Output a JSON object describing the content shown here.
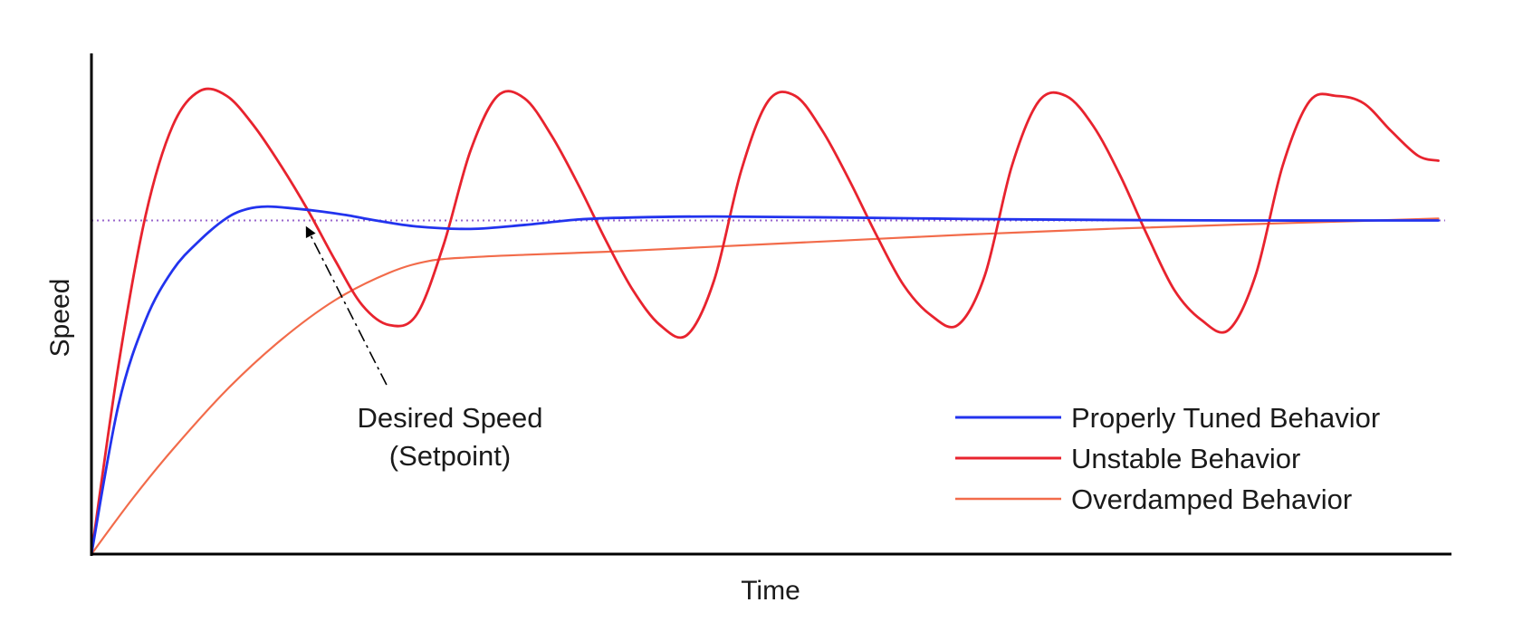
{
  "chart_data": {
    "type": "line",
    "title": "",
    "xlabel": "Time",
    "ylabel": "Speed",
    "xlim": [
      0,
      100
    ],
    "ylim": [
      0,
      100
    ],
    "grid": false,
    "tick_labels": false,
    "legend_position": "bottom-right",
    "setpoint": {
      "value": 67,
      "color": "#9966cc",
      "style": "dotted"
    },
    "annotation": {
      "lines": [
        "Desired Speed",
        "(Setpoint)"
      ],
      "arrow_style": "dash-dot",
      "points_to": {
        "x": 15.5,
        "y": 67
      },
      "from": {
        "x": 21.8,
        "y": 34
      }
    },
    "series": [
      {
        "name": "Properly Tuned Behavior",
        "color": "#2233ee",
        "x": [
          0,
          2,
          4,
          6,
          8,
          10,
          11.5,
          13,
          15,
          17,
          19,
          21,
          24,
          28,
          32,
          36,
          40,
          46,
          55,
          65,
          75,
          85,
          95,
          99.5
        ],
        "y": [
          0,
          30,
          47,
          57,
          63,
          67.5,
          69.3,
          69.8,
          69.4,
          68.8,
          68,
          67,
          65.8,
          65.3,
          66.1,
          67.2,
          67.6,
          67.8,
          67.6,
          67.3,
          67.1,
          67,
          67,
          67
        ]
      },
      {
        "name": "Unstable Behavior",
        "color": "#e8232e",
        "x": [
          0,
          2,
          4,
          6,
          8,
          10,
          12,
          14,
          16,
          18,
          20,
          22,
          24,
          26,
          28,
          30,
          32,
          34,
          36,
          38,
          40,
          42,
          44,
          46,
          48,
          50,
          52,
          54,
          56,
          58,
          60,
          62,
          64,
          66,
          68,
          70,
          72,
          74,
          76,
          78,
          80,
          82,
          84,
          86,
          88,
          90,
          92,
          94,
          96,
          98,
          99.5
        ],
        "y": [
          0,
          38,
          68,
          86,
          93,
          92,
          86,
          78,
          69,
          59,
          50,
          46,
          48,
          62,
          81,
          92,
          91.5,
          84,
          74,
          63,
          53,
          46,
          44,
          55,
          77,
          91,
          92,
          85,
          75,
          64,
          54,
          48,
          46,
          56,
          78,
          91,
          92,
          86,
          76,
          64,
          53,
          47,
          45,
          56,
          78,
          91,
          92,
          90.5,
          85,
          80,
          79
        ]
      },
      {
        "name": "Overdamped Behavior",
        "color": "#f26b4a",
        "x": [
          0,
          3,
          6,
          10,
          14,
          18,
          22,
          25,
          28,
          32,
          38,
          45,
          55,
          65,
          75,
          85,
          95,
          99.5
        ],
        "y": [
          0,
          11,
          21,
          33,
          43,
          51,
          56.5,
          58.9,
          59.6,
          60.1,
          60.7,
          61.6,
          62.9,
          64.2,
          65.3,
          66.2,
          67,
          67.4
        ]
      }
    ]
  }
}
